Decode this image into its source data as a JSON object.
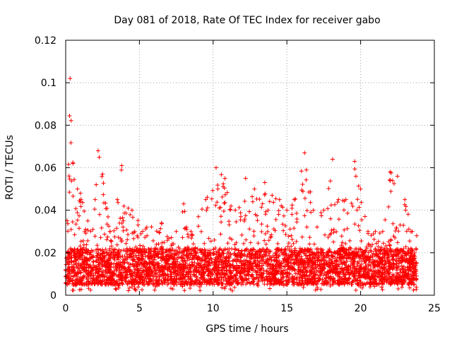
{
  "chart_data": {
    "type": "scatter",
    "title": "Day 081 of 2018, Rate Of TEC Index for receiver gabo",
    "xlabel": "GPS time / hours",
    "ylabel": "ROTI / TECUs",
    "xlim": [
      0,
      25
    ],
    "ylim": [
      0,
      0.12
    ],
    "xticks": [
      "0",
      "5",
      "10",
      "15",
      "20",
      "25"
    ],
    "yticks": [
      "0",
      "0.02",
      "0.04",
      "0.06",
      "0.08",
      "0.1",
      "0.12"
    ],
    "grid": true,
    "marker": "+",
    "series_color": "#ff0000",
    "x_range_observed": [
      0,
      23.8
    ],
    "envelope": [
      {
        "x": 0.0,
        "y": 0.012
      },
      {
        "x": 0.3,
        "y": 0.102
      },
      {
        "x": 0.5,
        "y": 0.062
      },
      {
        "x": 0.8,
        "y": 0.05
      },
      {
        "x": 1.0,
        "y": 0.048
      },
      {
        "x": 1.5,
        "y": 0.035
      },
      {
        "x": 2.0,
        "y": 0.045
      },
      {
        "x": 2.2,
        "y": 0.068
      },
      {
        "x": 2.5,
        "y": 0.057
      },
      {
        "x": 3.0,
        "y": 0.03
      },
      {
        "x": 3.5,
        "y": 0.045
      },
      {
        "x": 3.8,
        "y": 0.061
      },
      {
        "x": 4.5,
        "y": 0.04
      },
      {
        "x": 5.5,
        "y": 0.032
      },
      {
        "x": 6.5,
        "y": 0.034
      },
      {
        "x": 7.5,
        "y": 0.03
      },
      {
        "x": 8.0,
        "y": 0.043
      },
      {
        "x": 8.5,
        "y": 0.03
      },
      {
        "x": 9.0,
        "y": 0.037
      },
      {
        "x": 9.5,
        "y": 0.045
      },
      {
        "x": 10.2,
        "y": 0.06
      },
      {
        "x": 10.8,
        "y": 0.055
      },
      {
        "x": 11.5,
        "y": 0.04
      },
      {
        "x": 12.2,
        "y": 0.055
      },
      {
        "x": 12.8,
        "y": 0.05
      },
      {
        "x": 13.5,
        "y": 0.053
      },
      {
        "x": 14.0,
        "y": 0.047
      },
      {
        "x": 14.5,
        "y": 0.045
      },
      {
        "x": 15.0,
        "y": 0.04
      },
      {
        "x": 15.5,
        "y": 0.045
      },
      {
        "x": 16.2,
        "y": 0.067
      },
      {
        "x": 16.8,
        "y": 0.04
      },
      {
        "x": 17.5,
        "y": 0.04
      },
      {
        "x": 18.1,
        "y": 0.064
      },
      {
        "x": 18.5,
        "y": 0.045
      },
      {
        "x": 19.0,
        "y": 0.045
      },
      {
        "x": 19.6,
        "y": 0.063
      },
      {
        "x": 20.0,
        "y": 0.05
      },
      {
        "x": 20.5,
        "y": 0.03
      },
      {
        "x": 21.0,
        "y": 0.03
      },
      {
        "x": 21.5,
        "y": 0.03
      },
      {
        "x": 22.0,
        "y": 0.058
      },
      {
        "x": 22.5,
        "y": 0.056
      },
      {
        "x": 23.0,
        "y": 0.045
      },
      {
        "x": 23.5,
        "y": 0.03
      },
      {
        "x": 23.8,
        "y": 0.028
      }
    ],
    "baseline_min": 0.002,
    "typical_band": [
      0.005,
      0.022
    ]
  }
}
